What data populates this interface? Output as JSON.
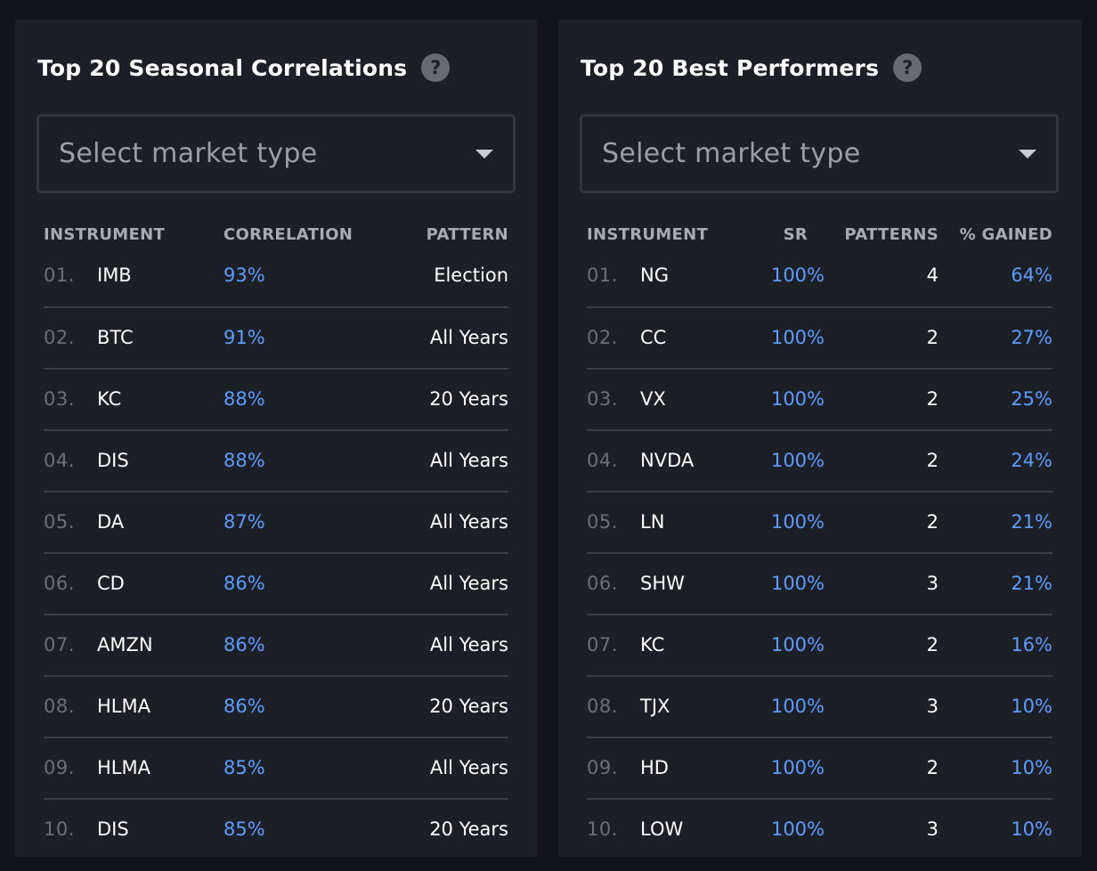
{
  "correlations": {
    "title": "Top 20 Seasonal Correlations",
    "help_icon": "question-mark",
    "select_placeholder": "Select market type",
    "columns": {
      "instrument": "INSTRUMENT",
      "correlation": "CORRELATION",
      "pattern": "PATTERN"
    },
    "rows": [
      {
        "index": "01.",
        "instrument": "IMB",
        "correlation": "93%",
        "pattern": "Election"
      },
      {
        "index": "02.",
        "instrument": "BTC",
        "correlation": "91%",
        "pattern": "All Years"
      },
      {
        "index": "03.",
        "instrument": "KC",
        "correlation": "88%",
        "pattern": "20 Years"
      },
      {
        "index": "04.",
        "instrument": "DIS",
        "correlation": "88%",
        "pattern": "All Years"
      },
      {
        "index": "05.",
        "instrument": "DA",
        "correlation": "87%",
        "pattern": "All Years"
      },
      {
        "index": "06.",
        "instrument": "CD",
        "correlation": "86%",
        "pattern": "All Years"
      },
      {
        "index": "07.",
        "instrument": "AMZN",
        "correlation": "86%",
        "pattern": "All Years"
      },
      {
        "index": "08.",
        "instrument": "HLMA",
        "correlation": "86%",
        "pattern": "20 Years"
      },
      {
        "index": "09.",
        "instrument": "HLMA",
        "correlation": "85%",
        "pattern": "All Years"
      },
      {
        "index": "10.",
        "instrument": "DIS",
        "correlation": "85%",
        "pattern": "20 Years"
      }
    ]
  },
  "performers": {
    "title": "Top 20 Best Performers",
    "help_icon": "question-mark",
    "select_placeholder": "Select market type",
    "columns": {
      "instrument": "INSTRUMENT",
      "sr": "SR",
      "patterns": "PATTERNS",
      "gained": "% GAINED"
    },
    "rows": [
      {
        "index": "01.",
        "instrument": "NG",
        "sr": "100%",
        "patterns": "4",
        "gained": "64%"
      },
      {
        "index": "02.",
        "instrument": "CC",
        "sr": "100%",
        "patterns": "2",
        "gained": "27%"
      },
      {
        "index": "03.",
        "instrument": "VX",
        "sr": "100%",
        "patterns": "2",
        "gained": "25%"
      },
      {
        "index": "04.",
        "instrument": "NVDA",
        "sr": "100%",
        "patterns": "2",
        "gained": "24%"
      },
      {
        "index": "05.",
        "instrument": "LN",
        "sr": "100%",
        "patterns": "2",
        "gained": "21%"
      },
      {
        "index": "06.",
        "instrument": "SHW",
        "sr": "100%",
        "patterns": "3",
        "gained": "21%"
      },
      {
        "index": "07.",
        "instrument": "KC",
        "sr": "100%",
        "patterns": "2",
        "gained": "16%"
      },
      {
        "index": "08.",
        "instrument": "TJX",
        "sr": "100%",
        "patterns": "3",
        "gained": "10%"
      },
      {
        "index": "09.",
        "instrument": "HD",
        "sr": "100%",
        "patterns": "2",
        "gained": "10%"
      },
      {
        "index": "10.",
        "instrument": "LOW",
        "sr": "100%",
        "patterns": "3",
        "gained": "10%"
      }
    ]
  },
  "colors": {
    "page_bg": "#121419",
    "panel_bg": "#1d1f26",
    "accent_blue": "#5b9cff",
    "divider": "#3a3d45"
  }
}
